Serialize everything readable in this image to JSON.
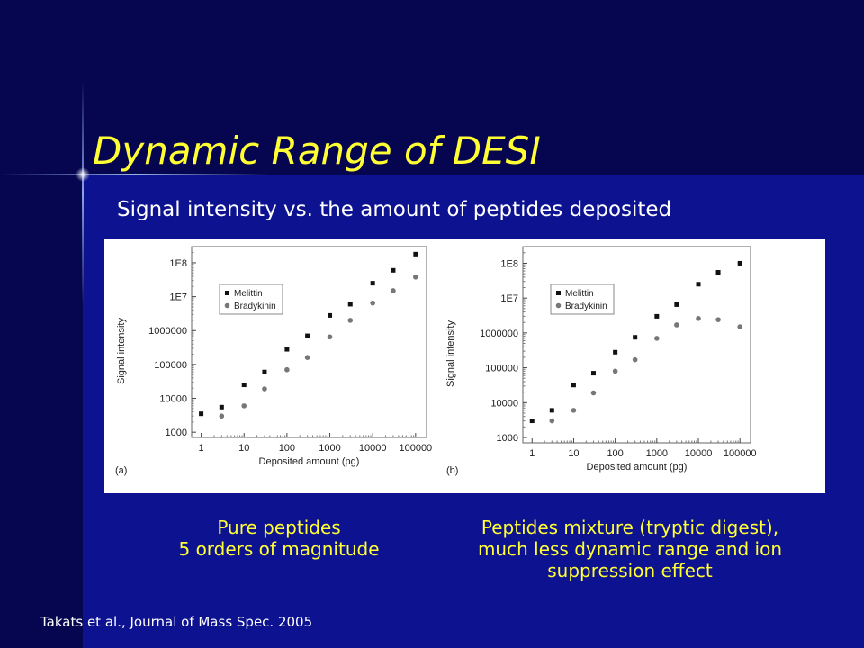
{
  "slide": {
    "title": "Dynamic Range of DESI",
    "subtitle": "Signal intensity vs. the amount of peptides deposited",
    "caption_left": [
      "Pure peptides",
      "5 orders of magnitude"
    ],
    "caption_right": [
      "Peptides mixture (tryptic digest),",
      "much less dynamic range and ion",
      "suppression effect"
    ],
    "citation": "Takats et al., Journal of Mass Spec. 2005",
    "colors": {
      "title": "#ffff33",
      "caption": "#ffff33",
      "background": "#0a0a78"
    }
  },
  "chart_data": [
    {
      "type": "scatter",
      "panel_label": "(a)",
      "xlabel": "Deposited amount (pg)",
      "ylabel": "Signal intensity",
      "x_scale": "log",
      "y_scale": "log",
      "xlim": [
        0.6,
        180000
      ],
      "ylim": [
        700,
        300000000
      ],
      "x_ticks": [
        1,
        10,
        100,
        1000,
        10000,
        100000
      ],
      "x_tick_labels": [
        "1",
        "10",
        "100",
        "1000",
        "10000",
        "100000"
      ],
      "y_ticks": [
        1000,
        10000,
        100000,
        1000000,
        10000000,
        100000000
      ],
      "y_tick_labels": [
        "1000",
        "10000",
        "100000",
        "1000000",
        "1E7",
        "1E8"
      ],
      "legend_position": "top-left",
      "series": [
        {
          "name": "Melittin",
          "marker": "square",
          "color": "#111111",
          "x": [
            1,
            3,
            10,
            30,
            100,
            300,
            1000,
            3000,
            10000,
            30000,
            100000
          ],
          "y": [
            3500,
            5500,
            25000,
            60000,
            280000,
            700000,
            2800000,
            6000000,
            25000000,
            60000000,
            180000000
          ]
        },
        {
          "name": "Bradykinin",
          "marker": "circle",
          "color": "#777777",
          "x": [
            3,
            10,
            30,
            100,
            300,
            1000,
            3000,
            10000,
            30000,
            100000
          ],
          "y": [
            3000,
            6000,
            19000,
            70000,
            160000,
            650000,
            2000000,
            6500000,
            15000000,
            38000000
          ]
        }
      ]
    },
    {
      "type": "scatter",
      "panel_label": "(b)",
      "xlabel": "Deposited amount (pg)",
      "ylabel": "Signal intensity",
      "x_scale": "log",
      "y_scale": "log",
      "xlim": [
        0.6,
        180000
      ],
      "ylim": [
        700,
        300000000
      ],
      "x_ticks": [
        1,
        10,
        100,
        1000,
        10000,
        100000
      ],
      "x_tick_labels": [
        "1",
        "10",
        "100",
        "1000",
        "10000",
        "100000"
      ],
      "y_ticks": [
        1000,
        10000,
        100000,
        1000000,
        10000000,
        100000000
      ],
      "y_tick_labels": [
        "1000",
        "10000",
        "100000",
        "1000000",
        "1E7",
        "1E8"
      ],
      "legend_position": "top-left",
      "series": [
        {
          "name": "Melittin",
          "marker": "square",
          "color": "#111111",
          "x": [
            1,
            3,
            10,
            30,
            100,
            300,
            1000,
            3000,
            10000,
            30000,
            100000
          ],
          "y": [
            3000,
            6000,
            32000,
            70000,
            280000,
            750000,
            3000000,
            6500000,
            25000000,
            55000000,
            100000000
          ]
        },
        {
          "name": "Bradykinin",
          "marker": "circle",
          "color": "#777777",
          "x": [
            3,
            10,
            30,
            100,
            300,
            1000,
            3000,
            10000,
            30000,
            100000
          ],
          "y": [
            3000,
            6000,
            19000,
            80000,
            170000,
            700000,
            1700000,
            2600000,
            2400000,
            1500000
          ]
        }
      ]
    }
  ]
}
